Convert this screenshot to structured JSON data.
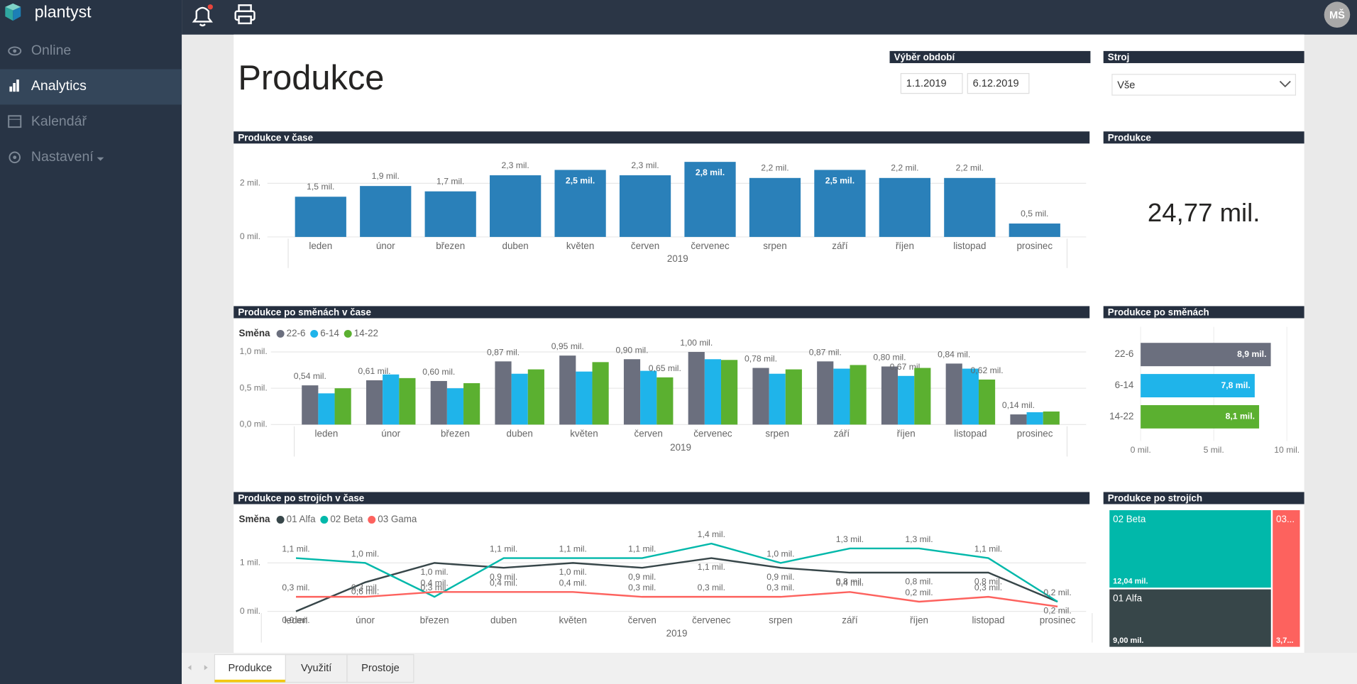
{
  "sidebar": {
    "brand": "plantyst",
    "nav": [
      "Online",
      "Analytics",
      "Kalendář",
      "Nastavení"
    ],
    "active": 1
  },
  "header": {
    "user": "MŠ"
  },
  "page": {
    "title": "Produkce",
    "period_label": "Výběr období",
    "date_from": "1.1.2019",
    "date_to": "6.12.2019",
    "machine_label": "Stroj",
    "machine_value": "Vše"
  },
  "kpi": {
    "title": "Produkce",
    "value": "24,77 mil."
  },
  "tabs": [
    "Produkce",
    "Využití",
    "Prostoje"
  ],
  "active_tab": 0,
  "chart_data": [
    {
      "type": "bar",
      "title": "Produkce v čase",
      "categories": [
        "leden",
        "únor",
        "březen",
        "duben",
        "květen",
        "červen",
        "červenec",
        "srpen",
        "září",
        "říjen",
        "listopad",
        "prosinec"
      ],
      "x_group": "2019",
      "values": [
        1.5,
        1.9,
        1.7,
        2.3,
        2.5,
        2.3,
        2.8,
        2.2,
        2.5,
        2.2,
        2.2,
        0.5
      ],
      "value_labels": [
        "1,5 mil.",
        "1,9 mil.",
        "1,7 mil.",
        "2,3 mil.",
        "2,5 mil.",
        "2,3 mil.",
        "2,8 mil.",
        "2,2 mil.",
        "2,5 mil.",
        "2,2 mil.",
        "2,2 mil.",
        "0,5 mil."
      ],
      "color": "#2a80b9",
      "ylim": [
        0,
        3
      ],
      "yticks": [
        {
          "value": 0,
          "label": "0 mil."
        },
        {
          "value": 2,
          "label": "2 mil."
        }
      ],
      "grid": true
    },
    {
      "type": "grouped_bar",
      "title": "Produkce po směnách v čase",
      "legend_title": "Směna",
      "categories": [
        "leden",
        "únor",
        "březen",
        "duben",
        "květen",
        "červen",
        "červenec",
        "srpen",
        "září",
        "říjen",
        "listopad",
        "prosinec"
      ],
      "x_group": "2019",
      "series": [
        {
          "name": "22-6",
          "color": "#6b6f7e",
          "values": [
            0.54,
            0.61,
            0.6,
            0.87,
            0.95,
            0.9,
            1.0,
            0.78,
            0.87,
            0.8,
            0.84,
            0.14
          ],
          "value_labels": [
            "0,54 mil.",
            "0,61 mil.",
            "0,60 mil.",
            "0,87 mil.",
            "0,95 mil.",
            "0,90 mil.",
            "1,00 mil.",
            "0,78 mil.",
            "0,87 mil.",
            "0,80 mil.",
            "0,84 mil.",
            "0,14 mil."
          ]
        },
        {
          "name": "6-14",
          "color": "#1fb4ea",
          "values": [
            0.43,
            0.69,
            0.5,
            0.7,
            0.73,
            0.74,
            0.9,
            0.7,
            0.77,
            0.67,
            0.77,
            0.17
          ],
          "value_labels": [
            null,
            null,
            null,
            null,
            null,
            null,
            null,
            null,
            null,
            "0,67 mil.",
            null,
            null
          ]
        },
        {
          "name": "14-22",
          "color": "#5bb030",
          "values": [
            0.5,
            0.64,
            0.57,
            0.76,
            0.86,
            0.65,
            0.89,
            0.76,
            0.82,
            0.78,
            0.62,
            0.18
          ],
          "value_labels": [
            null,
            null,
            null,
            null,
            null,
            "0,65 mil.",
            null,
            null,
            null,
            null,
            "0,62 mil.",
            null
          ]
        }
      ],
      "ylim": [
        0,
        1
      ],
      "yticks": [
        {
          "value": 0,
          "label": "0,0 mil."
        },
        {
          "value": 0.5,
          "label": "0,5 mil."
        },
        {
          "value": 1,
          "label": "1,0 mil."
        }
      ],
      "grid": true
    },
    {
      "type": "hbar",
      "title": "Produkce po směnách",
      "categories": [
        "22-6",
        "6-14",
        "14-22"
      ],
      "values": [
        8.9,
        7.8,
        8.1
      ],
      "value_labels": [
        "8,9 mil.",
        "7,8 mil.",
        "8,1 mil."
      ],
      "colors": [
        "#6b6f7e",
        "#1fb4ea",
        "#5bb030"
      ],
      "xlim": [
        0,
        10
      ],
      "xticks": [
        {
          "value": 0,
          "label": "0 mil."
        },
        {
          "value": 5,
          "label": "5 mil."
        },
        {
          "value": 10,
          "label": "10 mil."
        }
      ],
      "grid": true
    },
    {
      "type": "line",
      "title": "Produkce po strojích v čase",
      "legend_title": "Směna",
      "categories": [
        "leden",
        "únor",
        "březen",
        "duben",
        "květen",
        "červen",
        "červenec",
        "srpen",
        "září",
        "říjen",
        "listopad",
        "prosinec"
      ],
      "x_group": "2019",
      "series": [
        {
          "name": "01 Alfa",
          "color": "#374649",
          "values": [
            0.0,
            0.6,
            1.0,
            0.9,
            1.0,
            0.9,
            1.1,
            0.9,
            0.8,
            0.8,
            0.8,
            0.2
          ],
          "value_labels": [
            "0,0 mil.",
            "0,6 mil.",
            "1,0 mil.",
            "0,9 mil.",
            "1,0 mil.",
            "0,9 mil.",
            "1,1 mil.",
            "0,9 mil.",
            "0,8 mil.",
            "0,8 mil.",
            "0,8 mil.",
            "0,2 mil."
          ]
        },
        {
          "name": "02 Beta",
          "color": "#01b8aa",
          "values": [
            1.1,
            1.0,
            0.3,
            1.1,
            1.1,
            1.1,
            1.4,
            1.0,
            1.3,
            1.3,
            1.1,
            0.2
          ],
          "value_labels": [
            "1,1 mil.",
            "1,0 mil.",
            "0,3 mil.",
            "1,1 mil.",
            "1,1 mil.",
            "1,1 mil.",
            "1,4 mil.",
            "1,0 mil.",
            "1,3 mil.",
            "1,3 mil.",
            "1,1 mil.",
            "0,2 mil."
          ]
        },
        {
          "name": "03 Gama",
          "color": "#fd625e",
          "values": [
            0.3,
            0.3,
            0.4,
            0.4,
            0.4,
            0.3,
            0.3,
            0.3,
            0.4,
            0.2,
            0.3,
            0.1
          ],
          "value_labels": [
            "0,3 mil.",
            "0,3 mil.",
            "0,4 mil.",
            "0,4 mil.",
            "0,4 mil.",
            "0,3 mil.",
            "0,3 mil.",
            "0,3 mil.",
            "0,4 mil.",
            "0,2 mil.",
            "0,3 mil.",
            null
          ]
        }
      ],
      "ylim": [
        0,
        1.5
      ],
      "yticks": [
        {
          "value": 0,
          "label": "0 mil."
        },
        {
          "value": 1,
          "label": "1 mil."
        }
      ],
      "grid": true
    },
    {
      "type": "treemap",
      "title": "Produkce po strojích",
      "categories": [
        "02 Beta",
        "01 Alfa",
        "03..."
      ],
      "values": [
        12.04,
        9.0,
        3.73
      ],
      "value_labels": [
        "12,04 mil.",
        "9,00 mil.",
        "3,7..."
      ],
      "colors": [
        "#01b8aa",
        "#374649",
        "#fd625e"
      ]
    }
  ]
}
